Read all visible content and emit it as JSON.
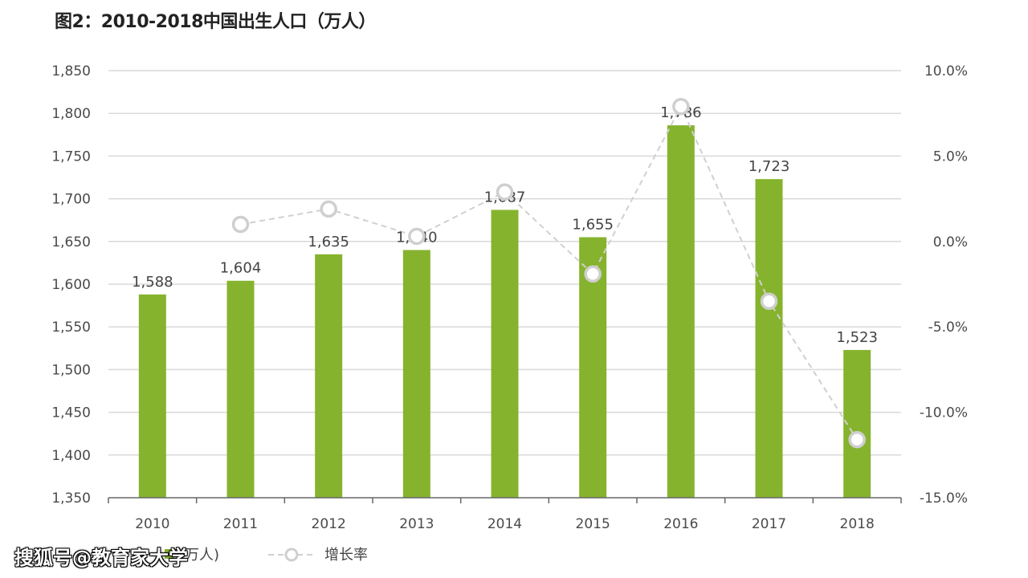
{
  "title": "图2：2010-2018中国出生人口（万人）",
  "watermark": "搜狐号@教育家大学",
  "chart_data": {
    "type": "bar",
    "categories": [
      "2010",
      "2011",
      "2012",
      "2013",
      "2014",
      "2015",
      "2016",
      "2017",
      "2018"
    ],
    "series": [
      {
        "name": "(万人)",
        "type": "bar",
        "axis": "left",
        "color": "#86b32e",
        "values": [
          1588,
          1604,
          1635,
          1640,
          1687,
          1655,
          1786,
          1723,
          1523
        ],
        "labels": [
          "1,588",
          "1,604",
          "1,635",
          "1,640",
          "1,687",
          "1,655",
          "1,786",
          "1,723",
          "1,523"
        ]
      },
      {
        "name": "增长率",
        "type": "line",
        "axis": "right",
        "color": "#d0d0d0",
        "dashed": true,
        "values": [
          null,
          1.0,
          1.9,
          0.3,
          2.9,
          -1.9,
          7.9,
          -3.5,
          -11.6
        ]
      }
    ],
    "y_left": {
      "ylim": [
        1350,
        1850
      ],
      "ticks": [
        1350,
        1400,
        1450,
        1500,
        1550,
        1600,
        1650,
        1700,
        1750,
        1800,
        1850
      ],
      "tick_labels": [
        "1,350",
        "1,400",
        "1,450",
        "1,500",
        "1,550",
        "1,600",
        "1,650",
        "1,700",
        "1,750",
        "1,800",
        "1,850"
      ]
    },
    "y_right": {
      "ylim": [
        -15,
        10
      ],
      "ticks": [
        10,
        5,
        0,
        -5,
        -10,
        -15
      ],
      "tick_labels": [
        "10.0%",
        "5.0%",
        "0.0%",
        "-5.0%",
        "-10.0%",
        "-15.0%"
      ]
    },
    "grid": true,
    "legend": {
      "position": "bottom-left",
      "entries": [
        "(万人)",
        "增长率"
      ]
    }
  }
}
